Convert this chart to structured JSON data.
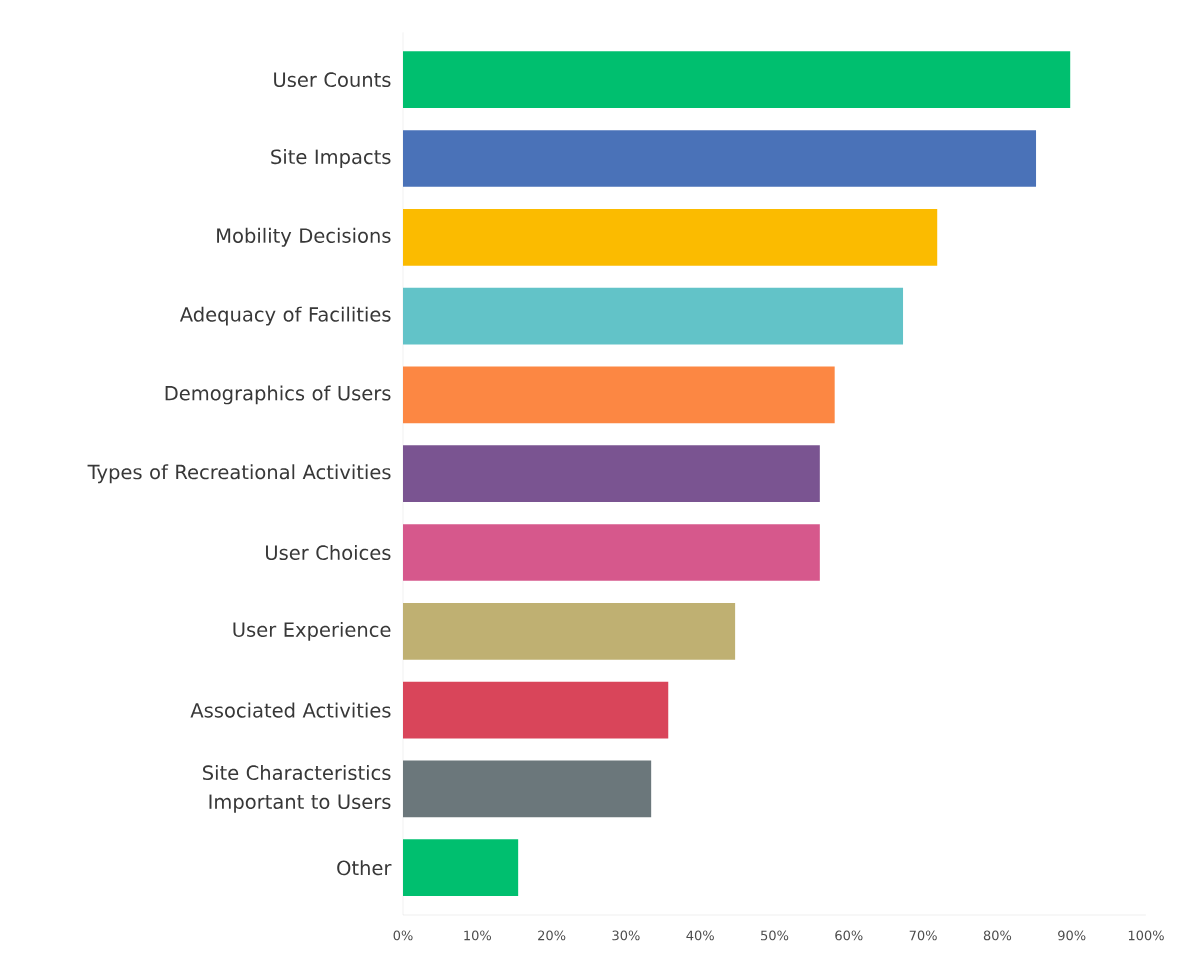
{
  "chart_data": {
    "type": "bar",
    "orientation": "horizontal",
    "categories": [
      "User Counts",
      "Site Impacts",
      "Mobility Decisions",
      "Adequacy of Facilities",
      "Demographics of Users",
      "Types of Recreational Activities",
      "User Choices",
      "User Experience",
      "Associated Activities",
      "Site Characteristics Important to Users",
      "Other"
    ],
    "values": [
      89.8,
      85.2,
      71.9,
      67.3,
      58.1,
      56.1,
      56.1,
      44.7,
      35.7,
      33.4,
      15.5
    ],
    "colors": [
      "#00bf6f",
      "#4a72b8",
      "#fbbb00",
      "#62c3c8",
      "#fc8743",
      "#7a5491",
      "#d6588c",
      "#bfb072",
      "#d9455a",
      "#6b777b",
      "#00bf6f"
    ],
    "xlim": [
      0,
      100
    ],
    "xticks": [
      {
        "value": 0,
        "label": "0%"
      },
      {
        "value": 10,
        "label": "10%"
      },
      {
        "value": 20,
        "label": "20%"
      },
      {
        "value": 30,
        "label": "30%"
      },
      {
        "value": 40,
        "label": "40%"
      },
      {
        "value": 50,
        "label": "50%"
      },
      {
        "value": 60,
        "label": "60%"
      },
      {
        "value": 70,
        "label": "70%"
      },
      {
        "value": 80,
        "label": "80%"
      },
      {
        "value": 90,
        "label": "90%"
      },
      {
        "value": 100,
        "label": "100%"
      }
    ],
    "grid": false
  }
}
